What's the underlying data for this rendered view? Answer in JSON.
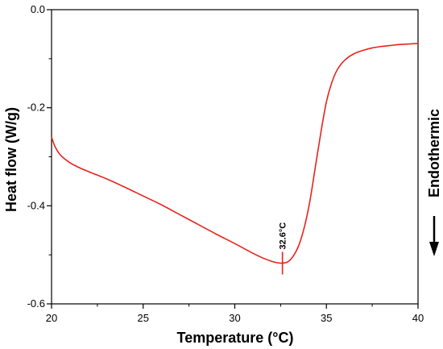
{
  "chart_data": {
    "type": "line",
    "xlabel": "Temperature (°C)",
    "ylabel": "Heat flow (W/g)",
    "xlim": [
      20,
      40
    ],
    "ylim": [
      -0.6,
      0.0
    ],
    "xticks": [
      "20",
      "25",
      "30",
      "35",
      "40"
    ],
    "yticks": [
      "0.0",
      "-0.2",
      "-0.4",
      "-0.6"
    ],
    "xtick_values": [
      20,
      25,
      30,
      35,
      40
    ],
    "ytick_values": [
      0.0,
      -0.2,
      -0.4,
      -0.6
    ],
    "grid": false,
    "line_color": "#e8231c",
    "series": [
      {
        "x": [
          20.0,
          20.2,
          20.5,
          21.0,
          21.5,
          22.0,
          23.0,
          24.0,
          25.0,
          26.0,
          27.0,
          28.0,
          29.0,
          30.0,
          31.0,
          31.5,
          32.0,
          32.3,
          32.6,
          32.9,
          33.2,
          33.5,
          33.8,
          34.1,
          34.4,
          34.7,
          35.0,
          35.3,
          35.6,
          36.0,
          36.5,
          37.0,
          37.5,
          38.0,
          38.5,
          39.0,
          39.5,
          40.0
        ],
        "y": [
          -0.26,
          -0.28,
          -0.297,
          -0.312,
          -0.322,
          -0.33,
          -0.345,
          -0.362,
          -0.38,
          -0.398,
          -0.418,
          -0.438,
          -0.458,
          -0.477,
          -0.497,
          -0.506,
          -0.513,
          -0.516,
          -0.517,
          -0.514,
          -0.502,
          -0.48,
          -0.443,
          -0.39,
          -0.32,
          -0.25,
          -0.188,
          -0.148,
          -0.122,
          -0.103,
          -0.09,
          -0.083,
          -0.078,
          -0.075,
          -0.073,
          -0.071,
          -0.07,
          -0.069
        ]
      }
    ],
    "annotation": {
      "text": "32.6°C",
      "x": 32.6,
      "y": -0.517
    },
    "side_label": "Endothermic"
  }
}
